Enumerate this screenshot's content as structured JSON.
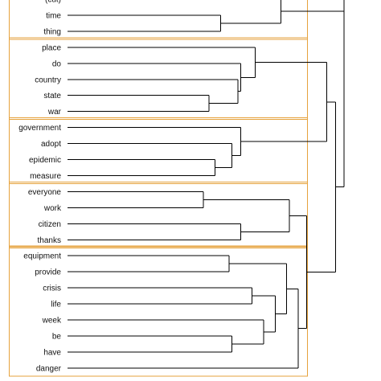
{
  "diagram": {
    "type": "dendrogram",
    "orientation": "leaves-left",
    "colors": {
      "branch": "#000000",
      "cluster_box": "#e6a23c",
      "label": "#111111"
    },
    "leaves": [
      {
        "label": "(cut)"
      },
      {
        "label": "time"
      },
      {
        "label": "thing"
      },
      {
        "label": "place"
      },
      {
        "label": "do"
      },
      {
        "label": "country"
      },
      {
        "label": "state"
      },
      {
        "label": "war"
      },
      {
        "label": "government"
      },
      {
        "label": "adopt"
      },
      {
        "label": "epidemic"
      },
      {
        "label": "measure"
      },
      {
        "label": "everyone"
      },
      {
        "label": "work"
      },
      {
        "label": "citizen"
      },
      {
        "label": "thanks"
      },
      {
        "label": "equipment"
      },
      {
        "label": "provide"
      },
      {
        "label": "crisis"
      },
      {
        "label": "life"
      },
      {
        "label": "week"
      },
      {
        "label": "be"
      },
      {
        "label": "have"
      },
      {
        "label": "danger"
      }
    ],
    "clusters": [
      {
        "first": 0,
        "last": 2
      },
      {
        "first": 3,
        "last": 7
      },
      {
        "first": 8,
        "last": 11
      },
      {
        "first": 12,
        "last": 15
      },
      {
        "first": 16,
        "last": 23
      }
    ],
    "merges": [
      {
        "id": "n0",
        "a": "L1",
        "b": "L2",
        "height": 0.72
      },
      {
        "id": "n1",
        "a": "L7",
        "b": "L6",
        "height": 0.68
      },
      {
        "id": "n2",
        "a": "L5",
        "b": "n1",
        "height": 0.78
      },
      {
        "id": "n3",
        "a": "L4",
        "b": "n2",
        "height": 0.79
      },
      {
        "id": "n4",
        "a": "L3",
        "b": "n3",
        "height": 0.84
      },
      {
        "id": "n5",
        "a": "L10",
        "b": "L11",
        "height": 0.7
      },
      {
        "id": "n6",
        "a": "L9",
        "b": "n5",
        "height": 0.76
      },
      {
        "id": "n7",
        "a": "L8",
        "b": "n6",
        "height": 0.79
      },
      {
        "id": "n8",
        "a": "n4",
        "b": "n7",
        "height": 1.09
      },
      {
        "id": "n9",
        "a": "L12",
        "b": "L13",
        "height": 0.66
      },
      {
        "id": "n10",
        "a": "L14",
        "b": "L15",
        "height": 0.79
      },
      {
        "id": "n11",
        "a": "n9",
        "b": "n10",
        "height": 0.96
      },
      {
        "id": "n12",
        "a": "L16",
        "b": "L17",
        "height": 0.75
      },
      {
        "id": "n13",
        "a": "L18",
        "b": "L19",
        "height": 0.83
      },
      {
        "id": "n14",
        "a": "L22",
        "b": "L21",
        "height": 0.76
      },
      {
        "id": "n15",
        "a": "L20",
        "b": "n14",
        "height": 0.87
      },
      {
        "id": "n16",
        "a": "n13",
        "b": "n15",
        "height": 0.91
      },
      {
        "id": "n17",
        "a": "n12",
        "b": "n16",
        "height": 0.95
      },
      {
        "id": "n18",
        "a": "n17",
        "b": "L23",
        "height": 0.99
      },
      {
        "id": "n19",
        "a": "n11",
        "b": "n18",
        "height": 1.02
      },
      {
        "id": "n20",
        "a": "n8",
        "b": "n19",
        "height": 1.12
      },
      {
        "id": "n21",
        "a": "L0",
        "b": "n0",
        "height": 0.93
      },
      {
        "id": "n22",
        "a": "n21",
        "b": "n20",
        "height": 1.15
      }
    ]
  }
}
